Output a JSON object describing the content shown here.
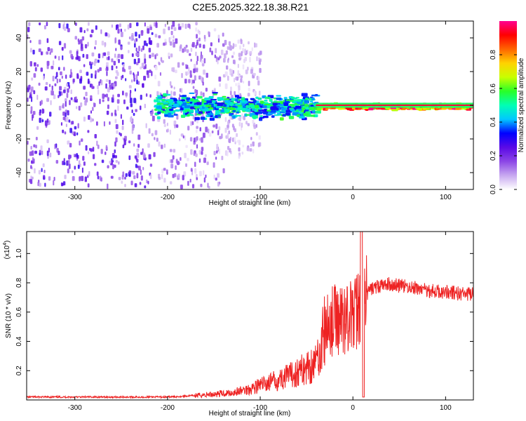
{
  "title": "C2E5.2025.322.18.38.R21",
  "chart_data": [
    {
      "type": "heatmap",
      "xlabel": "Height of straight line (km)",
      "ylabel": "Frequency (Hz)",
      "xlim": [
        -352,
        130
      ],
      "ylim": [
        -50,
        50
      ],
      "xticks": [
        -300,
        -200,
        -100,
        0,
        100
      ],
      "yticks": [
        -40,
        -20,
        0,
        20,
        40
      ],
      "colorbar": {
        "label": "Normalized spectral amplitude",
        "range": [
          0,
          1
        ],
        "ticks": [
          0.0,
          0.2,
          0.4,
          0.6,
          0.8
        ],
        "colormap": [
          "#ffffff",
          "#c8a8f0",
          "#8c46e6",
          "#5a0ae6",
          "#0000ff",
          "#00c8ff",
          "#00ffb4",
          "#28ff28",
          "#c8ff00",
          "#ffd200",
          "#ff6400",
          "#ff0000",
          "#ff0090"
        ]
      },
      "regions": [
        {
          "x": [
            -352,
            -215
          ],
          "amplitude": [
            0.05,
            0.3
          ],
          "frequency_spread": [
            -50,
            50
          ]
        },
        {
          "x": [
            -215,
            -140
          ],
          "amplitude": [
            0.02,
            0.2
          ],
          "frequency_spread": [
            -50,
            50
          ]
        },
        {
          "x": [
            -140,
            -100
          ],
          "amplitude": [
            0.02,
            0.12
          ],
          "frequency_spread": [
            -30,
            40
          ]
        },
        {
          "x": [
            -215,
            -40
          ],
          "amplitude": [
            0.3,
            0.6
          ],
          "frequency_center": 0,
          "frequency_spread": [
            -10,
            8
          ]
        },
        {
          "x": [
            -40,
            130
          ],
          "amplitude": [
            0.6,
            1.0
          ],
          "frequency_center": 0,
          "frequency_spread": [
            -2,
            2
          ]
        }
      ]
    },
    {
      "type": "line",
      "xlabel": "Height of straight line (km)",
      "ylabel": "SNR (10 * v/v)",
      "y_multiplier": "(x10",
      "y_multiplier_exponent": "4",
      "y_multiplier_close": ")",
      "xlim": [
        -352,
        130
      ],
      "ylim": [
        0,
        1.15
      ],
      "xticks": [
        -300,
        -200,
        -100,
        0,
        100
      ],
      "yticks": [
        0.2,
        0.4,
        0.6,
        0.8,
        1.0
      ],
      "color": "#ee2222",
      "series": [
        {
          "x": [
            -352,
            -300,
            -250,
            -200,
            -170,
            -150,
            -130,
            -115,
            -100,
            -90,
            -80,
            -70,
            -60,
            -50,
            -40,
            -35,
            -30,
            -25,
            -20,
            -15,
            -10,
            -5,
            0,
            5,
            8,
            10,
            12,
            15,
            20,
            30,
            40,
            50,
            60,
            70,
            80,
            90,
            100,
            110,
            120,
            130
          ],
          "values": [
            0.02,
            0.02,
            0.02,
            0.02,
            0.03,
            0.04,
            0.05,
            0.07,
            0.1,
            0.12,
            0.14,
            0.16,
            0.19,
            0.22,
            0.26,
            0.36,
            0.48,
            0.52,
            0.55,
            0.55,
            0.56,
            0.58,
            0.56,
            0.62,
            0.7,
            0.68,
            0.66,
            0.72,
            0.76,
            0.78,
            0.79,
            0.78,
            0.77,
            0.76,
            0.75,
            0.74,
            0.74,
            0.73,
            0.72,
            0.72
          ]
        }
      ]
    }
  ]
}
